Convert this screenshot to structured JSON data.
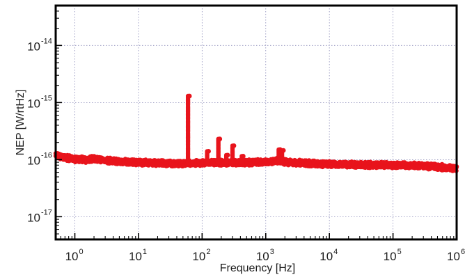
{
  "chart_data": {
    "type": "scatter",
    "title": "",
    "xlabel": "Frequency [Hz]",
    "ylabel": "NEP [W/rtHz]",
    "x_scale": "log",
    "y_scale": "log",
    "xlim": [
      0.5,
      1000000
    ],
    "ylim": [
      4e-18,
      5e-14
    ],
    "grid": true,
    "legend": "none",
    "marker_color": "#e8141c",
    "x_ticks": [
      {
        "base": "10",
        "exp": "0",
        "value": 1
      },
      {
        "base": "10",
        "exp": "1",
        "value": 10
      },
      {
        "base": "10",
        "exp": "2",
        "value": 100
      },
      {
        "base": "10",
        "exp": "3",
        "value": 1000
      },
      {
        "base": "10",
        "exp": "4",
        "value": 10000
      },
      {
        "base": "10",
        "exp": "5",
        "value": 100000
      },
      {
        "base": "10",
        "exp": "6",
        "value": 1000000
      }
    ],
    "y_ticks": [
      {
        "base": "10",
        "exp": "-17",
        "value": 1e-17
      },
      {
        "base": "10",
        "exp": "-16",
        "value": 1e-16
      },
      {
        "base": "10",
        "exp": "-15",
        "value": 1e-15
      },
      {
        "base": "10",
        "exp": "-14",
        "value": 1e-14
      }
    ],
    "series": [
      {
        "baseline": [
          [
            0.5,
            1.2e-16
          ],
          [
            0.7,
            1.08e-16
          ],
          [
            1,
            1.02e-16
          ],
          [
            1.5,
            1e-16
          ],
          [
            2,
            1.04e-16
          ],
          [
            3,
            9.8e-17
          ],
          [
            5,
            9.3e-17
          ],
          [
            10,
            9e-17
          ],
          [
            20,
            8.8e-17
          ],
          [
            30,
            8.5e-17
          ],
          [
            50,
            8.6e-17
          ],
          [
            100,
            8.8e-17
          ],
          [
            200,
            8.9e-17
          ],
          [
            500,
            8.9e-17
          ],
          [
            1000,
            9e-17
          ],
          [
            1500,
            9.5e-17
          ],
          [
            3000,
            8.8e-17
          ],
          [
            10000,
            8.3e-17
          ],
          [
            100000,
            8e-17
          ],
          [
            300000,
            7.8e-17
          ],
          [
            1000000,
            7e-17
          ]
        ],
        "spikes": [
          {
            "x": 60,
            "y_top": 1.3e-15
          },
          {
            "x": 120,
            "y_top": 1.4e-16
          },
          {
            "x": 180,
            "y_top": 2.3e-16
          },
          {
            "x": 240,
            "y_top": 1.2e-16
          },
          {
            "x": 300,
            "y_top": 1.75e-16
          },
          {
            "x": 420,
            "y_top": 1.15e-16
          },
          {
            "x": 1600,
            "y_top": 1.5e-16
          },
          {
            "x": 1800,
            "y_top": 1.45e-16
          }
        ]
      }
    ]
  }
}
